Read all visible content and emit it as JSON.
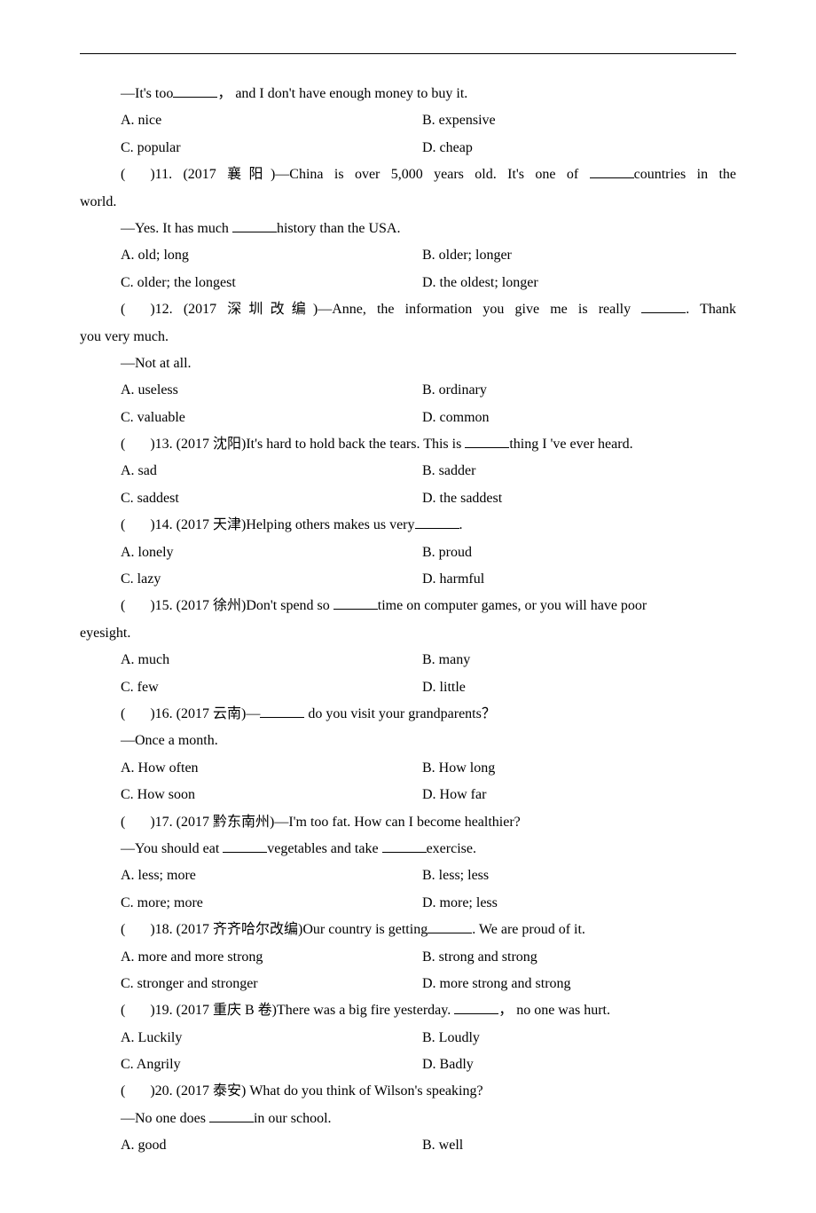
{
  "intro_continue": {
    "line1_prefix": "—It's too",
    "line1_suffix": "， and I don't have enough money to buy it.",
    "choices": {
      "A": "A. nice",
      "B": "B. expensive",
      "C": "C. popular",
      "D": "D. cheap"
    }
  },
  "q11": {
    "num": "11",
    "exam": "(2017 襄阳)",
    "text1_pre": "—China is over 5,000 years old. It's one of ",
    "text1_post": "countries in the",
    "text2": "world.",
    "line2_pre": "—Yes. It has much ",
    "line2_post": "history than the USA.",
    "choices": {
      "A": "A. old; long",
      "B": "B. older; longer",
      "C": "C. older; the longest",
      "D": "D. the oldest; longer"
    }
  },
  "q12": {
    "num": "12",
    "exam": "(2017 深圳改编)",
    "text1_pre": "—Anne, the information you give me is really ",
    "text1_post": ". Thank",
    "text2": "you very much.",
    "line2": "—Not at all.",
    "choices": {
      "A": "A. useless",
      "B": "B. ordinary",
      "C": "C. valuable",
      "D": "D. common"
    }
  },
  "q13": {
    "num": "13",
    "exam": "(2017 沈阳)",
    "text_pre": "It's hard to hold back the tears. This is ",
    "text_post": "thing I 've ever heard.",
    "choices": {
      "A": "A. sad",
      "B": "B. sadder",
      "C": "C. saddest",
      "D": "D. the saddest"
    }
  },
  "q14": {
    "num": "14",
    "exam": "(2017 天津)",
    "text_pre": "Helping others makes us very",
    "text_post": ".",
    "choices": {
      "A": "A. lonely",
      "B": "B. proud",
      "C": "C. lazy",
      "D": "D. harmful"
    }
  },
  "q15": {
    "num": "15",
    "exam": "(2017 徐州)",
    "text_pre": "Don't spend so ",
    "text_post": "time on computer games, or you will have poor",
    "text2": "eyesight.",
    "choices": {
      "A": "A. much",
      "B": "B. many",
      "C": "C. few",
      "D": "D. little"
    }
  },
  "q16": {
    "num": "16",
    "exam": "(2017 云南)",
    "text_pre": "—",
    "text_post": " do you visit your grandparents？",
    "line2": "—Once a month.",
    "choices": {
      "A": "A. How often",
      "B": "B. How long",
      "C": "C. How soon",
      "D": "D. How far"
    }
  },
  "q17": {
    "num": "17",
    "exam": "(2017 黔东南州)",
    "text1": "—I'm too fat. How can I become healthier?",
    "line2_pre": "—You should eat ",
    "line2_mid": "vegetables and take ",
    "line2_post": "exercise.",
    "choices": {
      "A": "A. less; more",
      "B": "B. less; less",
      "C": "C. more; more",
      "D": "D. more; less"
    }
  },
  "q18": {
    "num": "18",
    "exam": "(2017 齐齐哈尔改编)",
    "text_pre": "Our country is getting",
    "text_post": ". We are proud of it.",
    "choices": {
      "A": "A. more and more strong",
      "B": "B. strong and strong",
      "C": "C. stronger and stronger",
      "D": "D. more strong and strong"
    }
  },
  "q19": {
    "num": "19",
    "exam": "(2017 重庆 B 卷)",
    "text_pre": "There was a big fire yesterday. ",
    "text_post": "， no one was hurt.",
    "choices": {
      "A": "A. Luckily",
      "B": "B. Loudly",
      "C": "C. Angrily",
      "D": "D. Badly"
    }
  },
  "q20": {
    "num": "20",
    "exam": "(2017 泰安)",
    "text1": " What do you think of Wilson's speaking?",
    "line2_pre": "—No one does ",
    "line2_post": "in our school.",
    "choices": {
      "A": "A. good",
      "B": "B. well"
    }
  }
}
